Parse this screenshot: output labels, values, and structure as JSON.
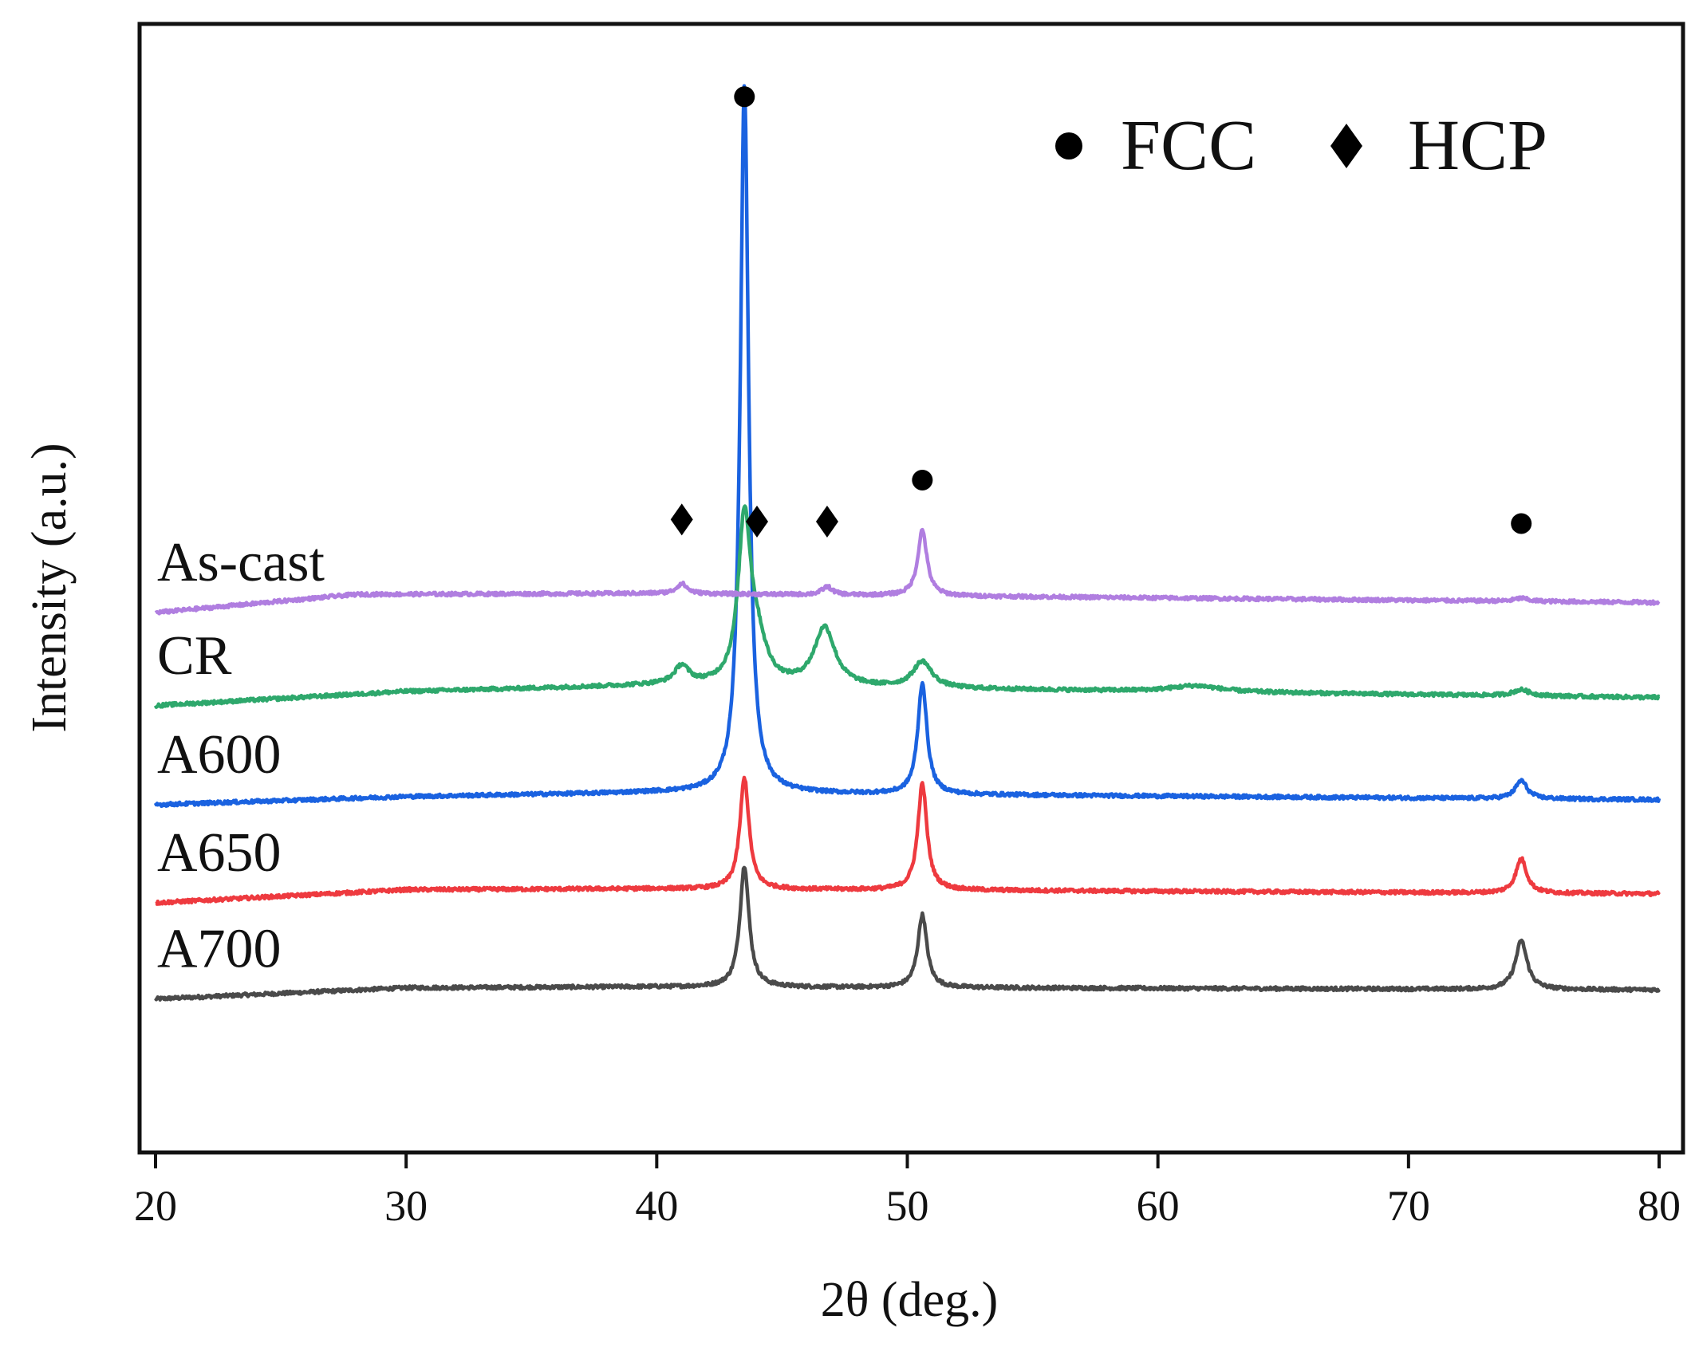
{
  "chart_data": {
    "type": "line",
    "title": "",
    "xlabel": "2θ (deg.)",
    "ylabel": "Intensity (a.u.)",
    "xlim": [
      20,
      80
    ],
    "ylim": [
      0,
      11
    ],
    "x_ticks": [
      "20",
      "30",
      "40",
      "50",
      "60",
      "70",
      "80"
    ],
    "grid": false,
    "legend": {
      "position": "top-right",
      "entries": [
        {
          "marker": "circle",
          "label": "FCC"
        },
        {
          "marker": "diamond",
          "label": "HCP"
        }
      ]
    },
    "series": [
      {
        "name": "As-cast",
        "color": "#b07ee0",
        "baseline": [
          [
            20,
            5.18
          ],
          [
            28,
            5.36
          ],
          [
            40,
            5.37
          ],
          [
            80,
            5.28
          ]
        ],
        "peaks": [
          {
            "x": 41.0,
            "height": 0.1,
            "width": 0.25
          },
          {
            "x": 46.8,
            "height": 0.08,
            "width": 0.25
          },
          {
            "x": 50.6,
            "height": 0.65,
            "width": 0.22
          },
          {
            "x": 74.5,
            "height": 0.03,
            "width": 0.3
          }
        ]
      },
      {
        "name": "CR",
        "color": "#2ea86c",
        "baseline": [
          [
            20,
            4.26
          ],
          [
            30,
            4.4
          ],
          [
            40,
            4.46
          ],
          [
            80,
            4.34
          ]
        ],
        "peaks": [
          {
            "x": 41.0,
            "height": 0.18,
            "width": 0.35
          },
          {
            "x": 43.5,
            "height": 1.6,
            "width": 0.3
          },
          {
            "x": 44.0,
            "height": 0.38,
            "width": 0.45
          },
          {
            "x": 46.7,
            "height": 0.58,
            "width": 0.5
          },
          {
            "x": 50.6,
            "height": 0.26,
            "width": 0.45
          },
          {
            "x": 61.5,
            "height": 0.06,
            "width": 1.2
          },
          {
            "x": 74.5,
            "height": 0.06,
            "width": 0.4
          }
        ]
      },
      {
        "name": "A600",
        "color": "#1a62e0",
        "baseline": [
          [
            20,
            3.28
          ],
          [
            30,
            3.36
          ],
          [
            40,
            3.4
          ],
          [
            80,
            3.33
          ]
        ],
        "peaks": [
          {
            "x": 43.5,
            "height": 7.0,
            "width": 0.2
          },
          {
            "x": 50.6,
            "height": 1.1,
            "width": 0.22
          },
          {
            "x": 74.5,
            "height": 0.18,
            "width": 0.28
          }
        ]
      },
      {
        "name": "A650",
        "color": "#ee3a3f",
        "baseline": [
          [
            20,
            2.31
          ],
          [
            30,
            2.44
          ],
          [
            40,
            2.45
          ],
          [
            80,
            2.4
          ]
        ],
        "peaks": [
          {
            "x": 43.5,
            "height": 1.1,
            "width": 0.22
          },
          {
            "x": 50.6,
            "height": 1.05,
            "width": 0.22
          },
          {
            "x": 74.5,
            "height": 0.34,
            "width": 0.26
          }
        ]
      },
      {
        "name": "A700",
        "color": "#4a4a4a",
        "baseline": [
          [
            20,
            1.36
          ],
          [
            30,
            1.47
          ],
          [
            40,
            1.48
          ],
          [
            80,
            1.45
          ]
        ],
        "peaks": [
          {
            "x": 43.5,
            "height": 1.2,
            "width": 0.22
          },
          {
            "x": 50.6,
            "height": 0.72,
            "width": 0.22
          },
          {
            "x": 74.5,
            "height": 0.48,
            "width": 0.28
          }
        ]
      }
    ],
    "annotations": [
      {
        "marker": "circle",
        "phase": "FCC",
        "x": 43.5,
        "y": 10.28
      },
      {
        "marker": "circle",
        "phase": "FCC",
        "x": 50.6,
        "y": 6.49
      },
      {
        "marker": "circle",
        "phase": "FCC",
        "x": 74.5,
        "y": 6.06
      },
      {
        "marker": "diamond",
        "phase": "HCP",
        "x": 41.0,
        "y": 6.1
      },
      {
        "marker": "diamond",
        "phase": "HCP",
        "x": 44.0,
        "y": 6.08
      },
      {
        "marker": "diamond",
        "phase": "HCP",
        "x": 46.8,
        "y": 6.08
      }
    ]
  }
}
